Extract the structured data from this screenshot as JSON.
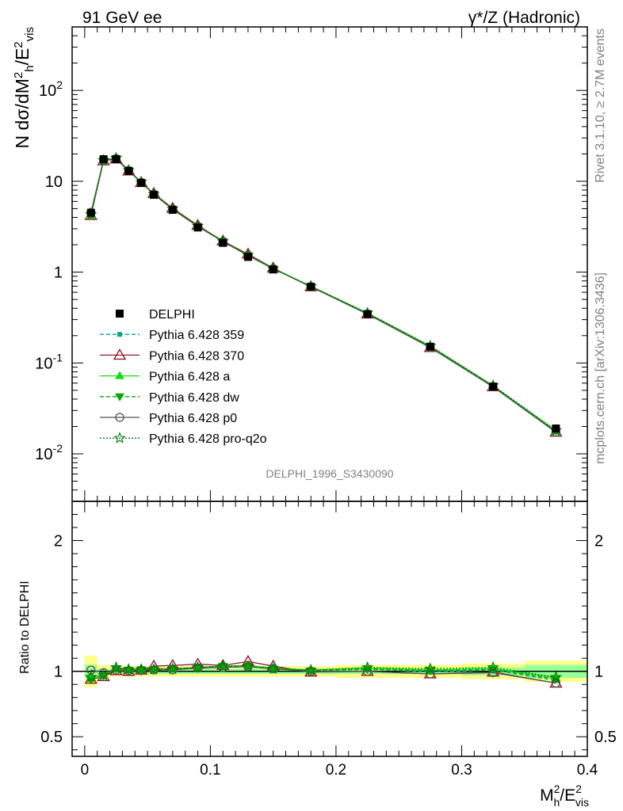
{
  "header": {
    "left_title": "91 GeV ee",
    "right_title": "γ*/Z (Hadronic)"
  },
  "side_labels": {
    "rivet": "Rivet 3.1.10, ≥ 2.7M events",
    "mcplots": "mcplots.cern.ch [arXiv:1306.3436]"
  },
  "watermark": "DELPHI_1996_S3430090",
  "chart_data": [
    {
      "type": "line",
      "log_y": true,
      "ylabel": "N dσ/dM²h/E²vis",
      "ylim": [
        0.003,
        500
      ],
      "xlim": [
        -0.01,
        0.4
      ],
      "y_ticks": [
        {
          "label": "10",
          "sup": "-2"
        },
        {
          "label": "10",
          "sup": "-1"
        },
        {
          "label": "1",
          "sup": ""
        },
        {
          "label": "10",
          "sup": ""
        },
        {
          "label": "10",
          "sup": "2"
        }
      ],
      "x": [
        0.005,
        0.015,
        0.025,
        0.035,
        0.045,
        0.055,
        0.07,
        0.09,
        0.11,
        0.13,
        0.15,
        0.18,
        0.225,
        0.275,
        0.325,
        0.375
      ],
      "series": [
        {
          "name": "DELPHI",
          "color": "#000000",
          "values": [
            4.5,
            17.5,
            17.5,
            13.0,
            9.6,
            7.1,
            4.85,
            3.1,
            2.1,
            1.47,
            1.07,
            0.69,
            0.345,
            0.151,
            0.055,
            0.019
          ]
        },
        {
          "name": "Pythia 6.428 359",
          "color": "#00aa88",
          "values": [
            4.3,
            16.9,
            17.9,
            13.1,
            9.7,
            7.2,
            4.95,
            3.18,
            2.18,
            1.52,
            1.09,
            0.695,
            0.352,
            0.15,
            0.0555,
            0.0177
          ]
        },
        {
          "name": "Pythia 6.428 370",
          "color": "#8b1a2b",
          "values": [
            4.2,
            16.8,
            17.6,
            13.0,
            9.7,
            7.35,
            5.05,
            3.27,
            2.2,
            1.58,
            1.11,
            0.69,
            0.346,
            0.148,
            0.0548,
            0.0173
          ]
        },
        {
          "name": "Pythia 6.428 a",
          "color": "#11dd11",
          "values": [
            4.3,
            17.0,
            18.0,
            13.2,
            9.8,
            7.25,
            4.95,
            3.2,
            2.19,
            1.54,
            1.1,
            0.7,
            0.354,
            0.153,
            0.056,
            0.018
          ]
        },
        {
          "name": "Pythia 6.428 dw",
          "color": "#00aa00",
          "values": [
            4.2,
            16.9,
            17.9,
            13.1,
            9.75,
            7.2,
            4.95,
            3.2,
            2.19,
            1.53,
            1.09,
            0.695,
            0.351,
            0.152,
            0.0558,
            0.0178
          ]
        },
        {
          "name": "Pythia 6.428 p0",
          "color": "#555555",
          "values": [
            4.55,
            17.3,
            17.7,
            13.1,
            9.7,
            7.2,
            4.9,
            3.18,
            2.17,
            1.52,
            1.09,
            0.69,
            0.345,
            0.148,
            0.0545,
            0.0173
          ]
        },
        {
          "name": "Pythia 6.428 pro-q2o",
          "color": "#007700",
          "values": [
            4.3,
            17.0,
            18.0,
            13.2,
            9.75,
            7.2,
            4.95,
            3.2,
            2.18,
            1.53,
            1.09,
            0.7,
            0.355,
            0.154,
            0.0565,
            0.0181
          ]
        }
      ]
    },
    {
      "type": "line",
      "ylabel": "Ratio to DELPHI",
      "xlabel": "M²h/E²vis",
      "ylim": [
        0.35,
        2.3
      ],
      "xlim": [
        -0.01,
        0.4
      ],
      "x_ticks": [
        "0",
        "0.1",
        "0.2",
        "0.3",
        "0.4"
      ],
      "y_ticks": [
        "0.5",
        "1",
        "2"
      ],
      "x": [
        0.005,
        0.015,
        0.025,
        0.035,
        0.045,
        0.055,
        0.07,
        0.09,
        0.11,
        0.13,
        0.15,
        0.18,
        0.225,
        0.275,
        0.325,
        0.375
      ],
      "uncertainty_band": {
        "bins": [
          [
            0.0,
            0.01
          ],
          [
            0.01,
            0.02
          ],
          [
            0.02,
            0.03
          ],
          [
            0.03,
            0.04
          ],
          [
            0.04,
            0.05
          ],
          [
            0.05,
            0.06
          ],
          [
            0.06,
            0.08
          ],
          [
            0.08,
            0.1
          ],
          [
            0.1,
            0.12
          ],
          [
            0.12,
            0.14
          ],
          [
            0.14,
            0.16
          ],
          [
            0.16,
            0.2
          ],
          [
            0.2,
            0.25
          ],
          [
            0.25,
            0.3
          ],
          [
            0.3,
            0.35
          ],
          [
            0.35,
            0.4
          ]
        ],
        "inner": [
          0.05,
          0.02,
          0.02,
          0.02,
          0.02,
          0.02,
          0.02,
          0.02,
          0.02,
          0.02,
          0.02,
          0.02,
          0.02,
          0.02,
          0.03,
          0.05
        ],
        "outer": [
          0.12,
          0.05,
          0.04,
          0.04,
          0.04,
          0.04,
          0.04,
          0.04,
          0.04,
          0.04,
          0.04,
          0.04,
          0.05,
          0.05,
          0.06,
          0.08
        ],
        "inner_color": "#99ff99",
        "outer_color": "#ffff88"
      },
      "series": [
        {
          "name": "Pythia 6.428 359",
          "color": "#00aa88",
          "values": [
            0.96,
            0.965,
            1.02,
            1.01,
            1.01,
            1.02,
            1.02,
            1.025,
            1.035,
            1.035,
            1.02,
            1.005,
            1.02,
            0.995,
            1.01,
            0.93
          ]
        },
        {
          "name": "Pythia 6.428 370",
          "color": "#8b1a2b",
          "values": [
            0.94,
            0.96,
            1.005,
            1.0,
            1.01,
            1.04,
            1.045,
            1.055,
            1.045,
            1.075,
            1.04,
            0.995,
            1.0,
            0.98,
            0.995,
            0.91
          ]
        },
        {
          "name": "Pythia 6.428 a",
          "color": "#11dd11",
          "values": [
            0.96,
            0.97,
            1.03,
            1.015,
            1.02,
            1.02,
            1.02,
            1.03,
            1.04,
            1.045,
            1.025,
            1.01,
            1.025,
            1.01,
            1.02,
            0.95
          ]
        },
        {
          "name": "Pythia 6.428 dw",
          "color": "#00aa00",
          "values": [
            0.935,
            0.965,
            1.02,
            1.01,
            1.015,
            1.015,
            1.02,
            1.03,
            1.04,
            1.04,
            1.02,
            1.005,
            1.015,
            1.005,
            1.015,
            0.94
          ]
        },
        {
          "name": "Pythia 6.428 p0",
          "color": "#555555",
          "values": [
            1.01,
            0.99,
            1.01,
            1.005,
            1.005,
            1.01,
            1.01,
            1.025,
            1.03,
            1.035,
            1.02,
            1.0,
            1.0,
            0.98,
            0.99,
            0.91
          ]
        },
        {
          "name": "Pythia 6.428 pro-q2o",
          "color": "#007700",
          "values": [
            0.955,
            0.97,
            1.03,
            1.015,
            1.015,
            1.015,
            1.02,
            1.03,
            1.04,
            1.04,
            1.02,
            1.01,
            1.03,
            1.02,
            1.03,
            0.955
          ]
        }
      ]
    }
  ]
}
